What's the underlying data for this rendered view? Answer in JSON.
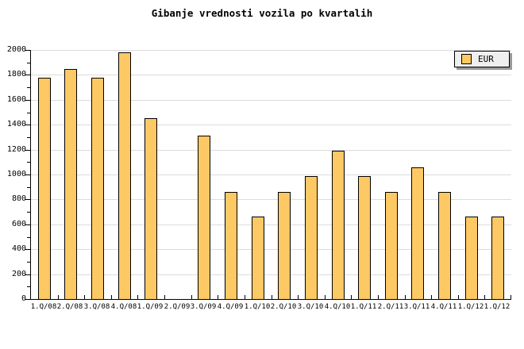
{
  "title": "Gibanje vrednosti vozila po kvartalih",
  "legend": {
    "label": "EUR"
  },
  "colors": {
    "bar_fill": "#FDC964",
    "bar_border": "#000000",
    "grid": "#DCDCDC",
    "axis": "#000000",
    "legend_bg": "#EFEFEF",
    "legend_shadow": "#999999",
    "background": "#FFFFFF"
  },
  "chart_data": {
    "type": "bar",
    "title": "Gibanje vrednosti vozila po kvartalih",
    "categories": [
      "1.Q/08",
      "2.Q/08",
      "3.Q/08",
      "4.Q/08",
      "1.Q/09",
      "2.Q/09",
      "3.Q/09",
      "4.Q/09",
      "1.Q/10",
      "2.Q/10",
      "3.Q/10",
      "4.Q/10",
      "1.Q/11",
      "2.Q/11",
      "3.Q/11",
      "4.Q/11",
      "1.Q/12",
      "1.Q/12"
    ],
    "series": [
      {
        "name": "EUR",
        "values": [
          1780,
          1845,
          1780,
          1980,
          1450,
          0,
          1315,
          860,
          660,
          860,
          990,
          1190,
          990,
          860,
          1060,
          860,
          660,
          660
        ]
      }
    ],
    "xlabel": "",
    "ylabel": "",
    "ylim": [
      0,
      2000
    ],
    "ytick_step": 200,
    "ytick_minor_step": 100,
    "ytick_labels": [
      "0",
      "200",
      "400",
      "600",
      "800",
      "1000",
      "1200",
      "1400",
      "1600",
      "1800",
      "2000"
    ],
    "grid": true,
    "legend_position": "top-right"
  }
}
